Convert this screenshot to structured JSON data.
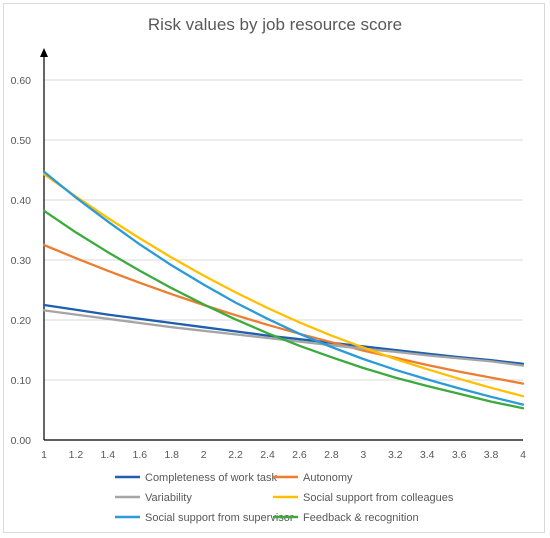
{
  "chart_data": {
    "type": "line",
    "title": "Risk values by job resource score",
    "xlabel": "",
    "ylabel": "",
    "x": [
      1,
      1.2,
      1.4,
      1.6,
      1.8,
      2,
      2.2,
      2.4,
      2.6,
      2.8,
      3,
      3.2,
      3.4,
      3.6,
      3.8,
      4
    ],
    "x_tick_labels": [
      "1",
      "1.2",
      "1.4",
      "1.6",
      "1.8",
      "2",
      "2.2",
      "2.4",
      "2.6",
      "2.8",
      "3",
      "3.2",
      "3.4",
      "3.6",
      "3.8",
      "4"
    ],
    "xlim": [
      1,
      4
    ],
    "ylim": [
      0,
      0.6
    ],
    "y_ticks": [
      0,
      0.1,
      0.2,
      0.3,
      0.4,
      0.5,
      0.6
    ],
    "y_tick_labels": [
      "0.00",
      "0.10",
      "0.20",
      "0.30",
      "0.40",
      "0.50",
      "0.60"
    ],
    "grid": true,
    "legend_position": "bottom",
    "series": [
      {
        "name": "Completeness of work task",
        "color": "#1f5fad",
        "values": [
          0.225,
          0.217,
          0.209,
          0.202,
          0.195,
          0.188,
          0.181,
          0.174,
          0.168,
          0.162,
          0.156,
          0.15,
          0.144,
          0.138,
          0.133,
          0.127
        ]
      },
      {
        "name": "Autonomy",
        "color": "#ed7d31",
        "values": [
          0.325,
          0.303,
          0.282,
          0.262,
          0.243,
          0.225,
          0.208,
          0.192,
          0.177,
          0.163,
          0.149,
          0.137,
          0.125,
          0.114,
          0.104,
          0.094
        ]
      },
      {
        "name": "Variability",
        "color": "#a5a5a5",
        "values": [
          0.216,
          0.209,
          0.202,
          0.195,
          0.188,
          0.182,
          0.176,
          0.17,
          0.164,
          0.158,
          0.152,
          0.147,
          0.141,
          0.136,
          0.131,
          0.124
        ]
      },
      {
        "name": "Social support from colleagues",
        "color": "#ffc000",
        "values": [
          0.443,
          0.406,
          0.37,
          0.336,
          0.304,
          0.274,
          0.246,
          0.22,
          0.196,
          0.174,
          0.154,
          0.135,
          0.118,
          0.102,
          0.087,
          0.073
        ]
      },
      {
        "name": "Social support from supervisor",
        "color": "#2a9bd8",
        "values": [
          0.447,
          0.404,
          0.364,
          0.326,
          0.291,
          0.259,
          0.229,
          0.202,
          0.177,
          0.155,
          0.135,
          0.117,
          0.101,
          0.086,
          0.072,
          0.059
        ]
      },
      {
        "name": "Feedback & recognition",
        "color": "#3caa3c",
        "values": [
          0.382,
          0.346,
          0.313,
          0.282,
          0.253,
          0.226,
          0.201,
          0.178,
          0.157,
          0.138,
          0.12,
          0.104,
          0.09,
          0.077,
          0.064,
          0.053
        ]
      }
    ]
  }
}
